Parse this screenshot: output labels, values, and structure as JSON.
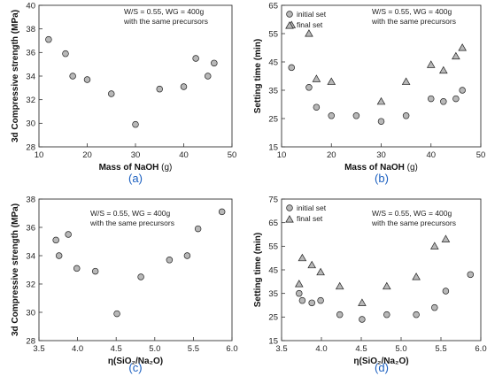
{
  "chart_data": [
    {
      "type": "scatter",
      "panel_label": "(a)",
      "ylabel": "3d Compressive strength (MPa)",
      "xlabel_main": "Mass of NaOH",
      "xlabel_unit": " (g)",
      "xlim": [
        10,
        50
      ],
      "ylim": [
        28,
        40
      ],
      "xticks": [
        10,
        20,
        30,
        40,
        50
      ],
      "yticks": [
        28,
        30,
        32,
        34,
        36,
        38,
        40
      ],
      "annotation": [
        "W/S = 0.55, WG = 400g",
        "with the same precursors"
      ],
      "series": [
        {
          "name": "",
          "marker": "circle",
          "points": [
            [
              12,
              37.1
            ],
            [
              15.5,
              35.9
            ],
            [
              17,
              34.0
            ],
            [
              20,
              33.7
            ],
            [
              25,
              32.5
            ],
            [
              30,
              29.9
            ],
            [
              35,
              32.9
            ],
            [
              40,
              33.1
            ],
            [
              42.5,
              35.5
            ],
            [
              45,
              34.0
            ],
            [
              46.3,
              35.1
            ]
          ]
        }
      ]
    },
    {
      "type": "scatter",
      "panel_label": "(b)",
      "ylabel": "Setting time (min)",
      "xlabel_main": "Mass of NaOH",
      "xlabel_unit": " (g)",
      "xlim": [
        10,
        50
      ],
      "ylim": [
        15,
        65
      ],
      "xticks": [
        10,
        20,
        30,
        40,
        50
      ],
      "yticks": [
        15,
        25,
        35,
        45,
        55,
        65
      ],
      "annotation": [
        "W/S = 0.55, WG = 400g",
        "with the same precursors"
      ],
      "series": [
        {
          "name": "initial set",
          "marker": "circle",
          "points": [
            [
              12,
              43
            ],
            [
              15.5,
              36
            ],
            [
              17,
              29
            ],
            [
              20,
              26
            ],
            [
              25,
              26
            ],
            [
              30,
              24
            ],
            [
              35,
              26
            ],
            [
              40,
              32
            ],
            [
              42.5,
              31
            ],
            [
              45,
              32
            ],
            [
              46.3,
              35
            ]
          ]
        },
        {
          "name": "final set",
          "marker": "triangle",
          "points": [
            [
              12,
              58
            ],
            [
              15.5,
              55
            ],
            [
              17,
              39
            ],
            [
              20,
              38
            ],
            [
              30,
              31
            ],
            [
              35,
              38
            ],
            [
              40,
              44
            ],
            [
              42.5,
              42
            ],
            [
              45,
              47
            ],
            [
              46.3,
              50
            ]
          ]
        }
      ]
    },
    {
      "type": "scatter",
      "panel_label": "(c)",
      "ylabel": "3d Compressive strength (MPa)",
      "xlabel_main": "η(SiO₂/Na₂O)",
      "xlabel_unit": "",
      "xlim": [
        3.5,
        6.0
      ],
      "ylim": [
        28,
        38
      ],
      "xticks": [
        3.5,
        4.0,
        4.5,
        5.0,
        5.5,
        6.0
      ],
      "yticks": [
        28,
        30,
        32,
        34,
        36,
        38
      ],
      "annotation": [
        "W/S = 0.55, WG = 400g",
        "with the same precursors"
      ],
      "series": [
        {
          "name": "",
          "marker": "circle",
          "points": [
            [
              3.72,
              35.1
            ],
            [
              3.76,
              34.0
            ],
            [
              3.88,
              35.5
            ],
            [
              3.99,
              33.1
            ],
            [
              4.23,
              32.9
            ],
            [
              4.51,
              29.9
            ],
            [
              4.82,
              32.5
            ],
            [
              5.19,
              33.7
            ],
            [
              5.42,
              34.0
            ],
            [
              5.56,
              35.9
            ],
            [
              5.87,
              37.1
            ]
          ]
        }
      ]
    },
    {
      "type": "scatter",
      "panel_label": "(d)",
      "ylabel": "Setting time (min)",
      "xlabel_main": "η(SiO₂/Na₂O)",
      "xlabel_unit": "",
      "xlim": [
        3.5,
        6.0
      ],
      "ylim": [
        15,
        75
      ],
      "xticks": [
        3.5,
        4.0,
        4.5,
        5.0,
        5.5,
        6.0
      ],
      "yticks": [
        15,
        25,
        35,
        45,
        55,
        65,
        75
      ],
      "annotation": [
        "W/S = 0.55, WG = 400g",
        "with the same precursors"
      ],
      "series": [
        {
          "name": "initial set",
          "marker": "circle",
          "points": [
            [
              3.72,
              35
            ],
            [
              3.76,
              32
            ],
            [
              3.88,
              31
            ],
            [
              3.99,
              32
            ],
            [
              4.23,
              26
            ],
            [
              4.51,
              24
            ],
            [
              4.82,
              26
            ],
            [
              5.19,
              26
            ],
            [
              5.42,
              29
            ],
            [
              5.56,
              36
            ],
            [
              5.87,
              43
            ]
          ]
        },
        {
          "name": "final set",
          "marker": "triangle",
          "points": [
            [
              3.72,
              39
            ],
            [
              3.76,
              50
            ],
            [
              3.88,
              47
            ],
            [
              3.99,
              44
            ],
            [
              4.23,
              38
            ],
            [
              4.51,
              31
            ],
            [
              4.82,
              38
            ],
            [
              5.19,
              42
            ],
            [
              5.42,
              55
            ],
            [
              5.56,
              58
            ]
          ]
        }
      ]
    }
  ]
}
